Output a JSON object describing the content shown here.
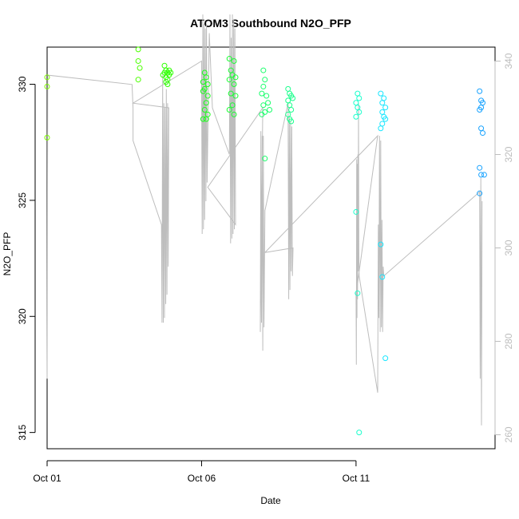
{
  "chart_data": {
    "type": "scatter",
    "title": "ATOM3 Southbound N2O_PFP",
    "xlabel": "Date",
    "ylabel": "N2O_PFP",
    "x_ticks": [
      "Oct 01",
      "Oct 06",
      "Oct 11"
    ],
    "x_tick_days": [
      1,
      6,
      11
    ],
    "xlim_days": [
      1,
      15.5
    ],
    "ylim": [
      314.3,
      331.6
    ],
    "y_ticks": [
      315,
      320,
      325,
      330
    ],
    "y2lim": [
      257,
      343
    ],
    "y2_ticks": [
      260,
      280,
      300,
      320,
      340
    ],
    "colors": {
      "grey_line": "#bdbdbd"
    },
    "series": [
      {
        "points": [
          {
            "x": 1.0,
            "y": 330.3,
            "color": "#7fff00"
          },
          {
            "x": 1.0,
            "y": 329.9,
            "color": "#7fff00"
          },
          {
            "x": 1.0,
            "y": 327.7,
            "color": "#7fff00"
          },
          {
            "x": 3.95,
            "y": 331.5,
            "color": "#4cff00"
          },
          {
            "x": 3.95,
            "y": 331.0,
            "color": "#4cff00"
          },
          {
            "x": 4.0,
            "y": 330.7,
            "color": "#4cff00"
          },
          {
            "x": 3.95,
            "y": 330.2,
            "color": "#4cff00"
          },
          {
            "x": 4.8,
            "y": 330.8,
            "color": "#2eff00"
          },
          {
            "x": 4.85,
            "y": 330.6,
            "color": "#2eff00"
          },
          {
            "x": 4.9,
            "y": 330.5,
            "color": "#2eff00"
          },
          {
            "x": 4.8,
            "y": 330.5,
            "color": "#2eff00"
          },
          {
            "x": 4.95,
            "y": 330.6,
            "color": "#2eff00"
          },
          {
            "x": 4.75,
            "y": 330.4,
            "color": "#2eff00"
          },
          {
            "x": 4.85,
            "y": 330.3,
            "color": "#2eff00"
          },
          {
            "x": 4.9,
            "y": 330.2,
            "color": "#2eff00"
          },
          {
            "x": 4.95,
            "y": 330.4,
            "color": "#2eff00"
          },
          {
            "x": 5.0,
            "y": 330.5,
            "color": "#2eff00"
          },
          {
            "x": 4.85,
            "y": 330.1,
            "color": "#2eff00"
          },
          {
            "x": 4.9,
            "y": 330.0,
            "color": "#2eff00"
          },
          {
            "x": 6.1,
            "y": 330.5,
            "color": "#1aff1a"
          },
          {
            "x": 6.15,
            "y": 330.3,
            "color": "#1aff1a"
          },
          {
            "x": 6.05,
            "y": 330.1,
            "color": "#1aff1a"
          },
          {
            "x": 6.2,
            "y": 330.0,
            "color": "#1aff1a"
          },
          {
            "x": 6.1,
            "y": 329.8,
            "color": "#1aff1a"
          },
          {
            "x": 6.2,
            "y": 329.5,
            "color": "#1aff1a"
          },
          {
            "x": 6.05,
            "y": 329.7,
            "color": "#1aff1a"
          },
          {
            "x": 6.15,
            "y": 329.2,
            "color": "#1aff1a"
          },
          {
            "x": 6.1,
            "y": 328.9,
            "color": "#1aff1a"
          },
          {
            "x": 6.2,
            "y": 328.7,
            "color": "#1aff1a"
          },
          {
            "x": 6.05,
            "y": 328.5,
            "color": "#1aff1a"
          },
          {
            "x": 6.15,
            "y": 328.5,
            "color": "#1aff1a"
          },
          {
            "x": 6.9,
            "y": 331.1,
            "color": "#1aff33"
          },
          {
            "x": 7.05,
            "y": 331.0,
            "color": "#1aff33"
          },
          {
            "x": 6.95,
            "y": 330.6,
            "color": "#1aff33"
          },
          {
            "x": 7.0,
            "y": 330.4,
            "color": "#1aff33"
          },
          {
            "x": 7.1,
            "y": 330.3,
            "color": "#1aff33"
          },
          {
            "x": 6.9,
            "y": 330.2,
            "color": "#1aff33"
          },
          {
            "x": 7.05,
            "y": 330.0,
            "color": "#1aff33"
          },
          {
            "x": 6.95,
            "y": 329.6,
            "color": "#1aff33"
          },
          {
            "x": 7.1,
            "y": 329.5,
            "color": "#1aff33"
          },
          {
            "x": 7.0,
            "y": 329.1,
            "color": "#1aff33"
          },
          {
            "x": 6.9,
            "y": 328.9,
            "color": "#1aff33"
          },
          {
            "x": 7.05,
            "y": 328.7,
            "color": "#1aff33"
          },
          {
            "x": 8.0,
            "y": 330.6,
            "color": "#19ff6b"
          },
          {
            "x": 8.05,
            "y": 330.2,
            "color": "#19ff6b"
          },
          {
            "x": 8.0,
            "y": 329.9,
            "color": "#19ff6b"
          },
          {
            "x": 7.95,
            "y": 329.6,
            "color": "#19ff6b"
          },
          {
            "x": 8.1,
            "y": 329.5,
            "color": "#19ff6b"
          },
          {
            "x": 8.0,
            "y": 329.1,
            "color": "#19ff6b"
          },
          {
            "x": 8.15,
            "y": 329.2,
            "color": "#19ff6b"
          },
          {
            "x": 8.05,
            "y": 328.8,
            "color": "#19ff6b"
          },
          {
            "x": 8.2,
            "y": 328.9,
            "color": "#19ff6b"
          },
          {
            "x": 7.95,
            "y": 328.7,
            "color": "#19ff6b"
          },
          {
            "x": 8.05,
            "y": 326.8,
            "color": "#19ff6b"
          },
          {
            "x": 8.8,
            "y": 329.8,
            "color": "#1aff8c"
          },
          {
            "x": 8.85,
            "y": 329.6,
            "color": "#1aff8c"
          },
          {
            "x": 8.9,
            "y": 329.5,
            "color": "#1aff8c"
          },
          {
            "x": 8.8,
            "y": 329.3,
            "color": "#1aff8c"
          },
          {
            "x": 8.95,
            "y": 329.4,
            "color": "#1aff8c"
          },
          {
            "x": 8.85,
            "y": 329.1,
            "color": "#1aff8c"
          },
          {
            "x": 8.9,
            "y": 328.9,
            "color": "#1aff8c"
          },
          {
            "x": 8.8,
            "y": 328.7,
            "color": "#1aff8c"
          },
          {
            "x": 8.85,
            "y": 328.5,
            "color": "#1aff8c"
          },
          {
            "x": 8.9,
            "y": 328.4,
            "color": "#1aff8c"
          },
          {
            "x": 11.05,
            "y": 329.6,
            "color": "#1affcc"
          },
          {
            "x": 11.1,
            "y": 329.4,
            "color": "#1affcc"
          },
          {
            "x": 11.0,
            "y": 329.2,
            "color": "#1affcc"
          },
          {
            "x": 11.05,
            "y": 329.0,
            "color": "#1affcc"
          },
          {
            "x": 11.1,
            "y": 328.8,
            "color": "#1affcc"
          },
          {
            "x": 11.0,
            "y": 328.6,
            "color": "#1affcc"
          },
          {
            "x": 11.0,
            "y": 324.5,
            "color": "#1affcc"
          },
          {
            "x": 11.05,
            "y": 321.0,
            "color": "#1affcc"
          },
          {
            "x": 11.1,
            "y": 315.0,
            "color": "#1affcc"
          },
          {
            "x": 11.8,
            "y": 329.6,
            "color": "#19e6ff"
          },
          {
            "x": 11.9,
            "y": 329.4,
            "color": "#19e6ff"
          },
          {
            "x": 11.85,
            "y": 329.2,
            "color": "#19e6ff"
          },
          {
            "x": 11.95,
            "y": 329.0,
            "color": "#19e6ff"
          },
          {
            "x": 11.85,
            "y": 328.8,
            "color": "#19e6ff"
          },
          {
            "x": 11.9,
            "y": 328.6,
            "color": "#19e6ff"
          },
          {
            "x": 11.95,
            "y": 328.5,
            "color": "#19e6ff"
          },
          {
            "x": 11.85,
            "y": 328.3,
            "color": "#19e6ff"
          },
          {
            "x": 11.8,
            "y": 328.1,
            "color": "#19e6ff"
          },
          {
            "x": 11.8,
            "y": 323.1,
            "color": "#19e6ff"
          },
          {
            "x": 11.85,
            "y": 321.7,
            "color": "#19e6ff"
          },
          {
            "x": 11.95,
            "y": 318.2,
            "color": "#19e6ff"
          },
          {
            "x": 15.0,
            "y": 329.7,
            "color": "#19a3ff"
          },
          {
            "x": 15.05,
            "y": 329.3,
            "color": "#19a3ff"
          },
          {
            "x": 15.1,
            "y": 329.2,
            "color": "#19a3ff"
          },
          {
            "x": 15.05,
            "y": 329.0,
            "color": "#19a3ff"
          },
          {
            "x": 15.0,
            "y": 328.9,
            "color": "#19a3ff"
          },
          {
            "x": 15.05,
            "y": 328.1,
            "color": "#19a3ff"
          },
          {
            "x": 15.1,
            "y": 327.9,
            "color": "#19a3ff"
          },
          {
            "x": 15.0,
            "y": 326.4,
            "color": "#19a3ff"
          },
          {
            "x": 15.05,
            "y": 326.1,
            "color": "#19a3ff"
          },
          {
            "x": 15.15,
            "y": 326.1,
            "color": "#19a3ff"
          },
          {
            "x": 15.0,
            "y": 325.3,
            "color": "#19a3ff"
          }
        ]
      },
      {
        "axis": "right",
        "style": "line",
        "color": "#bdbdbd",
        "points": [
          {
            "x": 1.0,
            "y": 272
          },
          {
            "x": 1.02,
            "y": 337
          },
          {
            "x": 3.75,
            "y": 335
          },
          {
            "x": 3.78,
            "y": 330
          },
          {
            "x": 3.78,
            "y": 323
          },
          {
            "x": 4.7,
            "y": 305
          },
          {
            "x": 4.72,
            "y": 284
          },
          {
            "x": 4.74,
            "y": 337
          },
          {
            "x": 4.76,
            "y": 284
          },
          {
            "x": 4.78,
            "y": 331
          },
          {
            "x": 4.8,
            "y": 285
          },
          {
            "x": 4.82,
            "y": 330
          },
          {
            "x": 4.84,
            "y": 288
          },
          {
            "x": 4.86,
            "y": 334
          },
          {
            "x": 4.88,
            "y": 290
          },
          {
            "x": 4.9,
            "y": 331
          },
          {
            "x": 4.92,
            "y": 296
          },
          {
            "x": 4.94,
            "y": 330
          },
          {
            "x": 3.78,
            "y": 331
          },
          {
            "x": 6.0,
            "y": 340
          },
          {
            "x": 6.02,
            "y": 303
          },
          {
            "x": 6.04,
            "y": 350
          },
          {
            "x": 6.06,
            "y": 304
          },
          {
            "x": 6.08,
            "y": 348
          },
          {
            "x": 6.1,
            "y": 306
          },
          {
            "x": 6.12,
            "y": 347
          },
          {
            "x": 6.14,
            "y": 310
          },
          {
            "x": 6.16,
            "y": 348
          },
          {
            "x": 6.18,
            "y": 314
          },
          {
            "x": 6.25,
            "y": 346
          },
          {
            "x": 6.35,
            "y": 330
          },
          {
            "x": 6.9,
            "y": 320
          },
          {
            "x": 6.92,
            "y": 350
          },
          {
            "x": 6.94,
            "y": 301
          },
          {
            "x": 6.96,
            "y": 345
          },
          {
            "x": 6.98,
            "y": 302
          },
          {
            "x": 7.0,
            "y": 350
          },
          {
            "x": 7.02,
            "y": 303
          },
          {
            "x": 7.04,
            "y": 349
          },
          {
            "x": 7.06,
            "y": 304
          },
          {
            "x": 7.08,
            "y": 347
          },
          {
            "x": 7.1,
            "y": 305
          },
          {
            "x": 6.2,
            "y": 313
          },
          {
            "x": 7.98,
            "y": 330
          },
          {
            "x": 7.9,
            "y": 282
          },
          {
            "x": 7.92,
            "y": 325
          },
          {
            "x": 7.94,
            "y": 284
          },
          {
            "x": 7.96,
            "y": 324
          },
          {
            "x": 7.98,
            "y": 278
          },
          {
            "x": 8.0,
            "y": 324
          },
          {
            "x": 8.02,
            "y": 283
          },
          {
            "x": 8.05,
            "y": 308
          },
          {
            "x": 8.8,
            "y": 331
          },
          {
            "x": 8.82,
            "y": 289
          },
          {
            "x": 8.84,
            "y": 328
          },
          {
            "x": 8.86,
            "y": 291
          },
          {
            "x": 8.88,
            "y": 327
          },
          {
            "x": 8.9,
            "y": 295
          },
          {
            "x": 8.92,
            "y": 326
          },
          {
            "x": 8.94,
            "y": 294
          },
          {
            "x": 8.96,
            "y": 300
          },
          {
            "x": 8.05,
            "y": 299
          },
          {
            "x": 11.7,
            "y": 324
          },
          {
            "x": 11.0,
            "y": 290
          },
          {
            "x": 11.01,
            "y": 275
          },
          {
            "x": 11.02,
            "y": 319
          },
          {
            "x": 11.03,
            "y": 285
          },
          {
            "x": 11.04,
            "y": 318
          },
          {
            "x": 11.05,
            "y": 289
          },
          {
            "x": 11.06,
            "y": 320
          },
          {
            "x": 11.07,
            "y": 295
          },
          {
            "x": 11.08,
            "y": 331
          },
          {
            "x": 11.09,
            "y": 300
          },
          {
            "x": 11.1,
            "y": 294
          },
          {
            "x": 11.7,
            "y": 269
          },
          {
            "x": 11.72,
            "y": 305
          },
          {
            "x": 11.74,
            "y": 285
          },
          {
            "x": 11.76,
            "y": 324
          },
          {
            "x": 11.78,
            "y": 282
          },
          {
            "x": 11.8,
            "y": 323
          },
          {
            "x": 11.82,
            "y": 283
          },
          {
            "x": 11.84,
            "y": 306
          },
          {
            "x": 11.86,
            "y": 282
          },
          {
            "x": 11.88,
            "y": 296
          },
          {
            "x": 11.9,
            "y": 294
          },
          {
            "x": 15.0,
            "y": 312
          },
          {
            "x": 15.02,
            "y": 272
          },
          {
            "x": 15.04,
            "y": 315
          },
          {
            "x": 15.06,
            "y": 262
          },
          {
            "x": 15.08,
            "y": 310
          }
        ]
      }
    ]
  }
}
